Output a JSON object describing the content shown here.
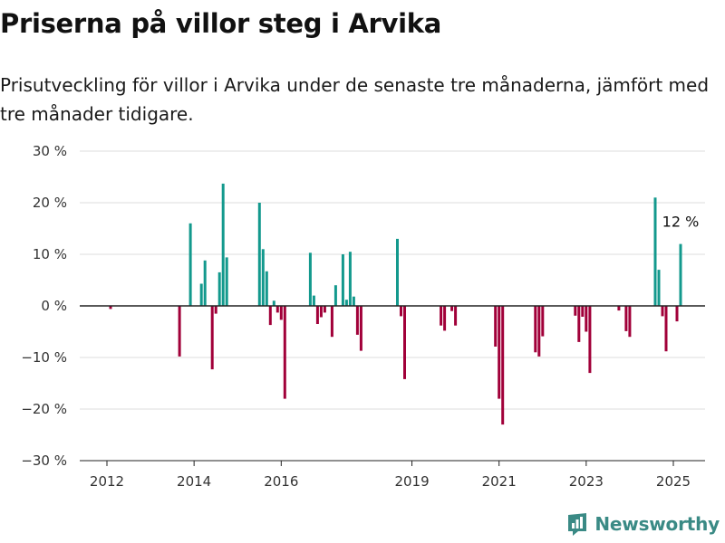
{
  "title": "Priserna på villor steg i Arvika",
  "subtitle": "Prisutveckling för villor i Arvika under de senaste tre månaderna, jämfört med tre månader tidigare.",
  "brand": {
    "name": "Newsworthy",
    "icon": "newsworthy-logo-icon"
  },
  "colors": {
    "positive": "#13998d",
    "negative": "#a10039",
    "grid": "#dddddd",
    "zero_line": "#222222",
    "brand": "#3a8a85"
  },
  "chart_data": {
    "type": "bar",
    "ylim": [
      -30,
      30
    ],
    "grid": true,
    "y_ticks": [
      30,
      20,
      10,
      0,
      -10,
      -20,
      -30
    ],
    "y_tick_labels": [
      "30 %",
      "20 %",
      "10 %",
      "0 %",
      "−10 %",
      "−20 %",
      "−30 %"
    ],
    "x_ticks": [
      "2012",
      "2014",
      "2016",
      "2019",
      "2021",
      "2023",
      "2025"
    ],
    "annotation": {
      "text": "12 %",
      "x": "2025-03",
      "value": 12
    },
    "bars": [
      {
        "x": "2012-02",
        "value": -0.6
      },
      {
        "x": "2013-09",
        "value": -9.8
      },
      {
        "x": "2013-12",
        "value": 16
      },
      {
        "x": "2014-03",
        "value": 4.3
      },
      {
        "x": "2014-04",
        "value": 8.8
      },
      {
        "x": "2014-06",
        "value": -12.3
      },
      {
        "x": "2014-07",
        "value": -1.5
      },
      {
        "x": "2014-08",
        "value": 6.5
      },
      {
        "x": "2014-09",
        "value": 23.7
      },
      {
        "x": "2014-10",
        "value": 9.4
      },
      {
        "x": "2015-07",
        "value": 20
      },
      {
        "x": "2015-08",
        "value": 11
      },
      {
        "x": "2015-09",
        "value": 6.7
      },
      {
        "x": "2015-10",
        "value": -3.7
      },
      {
        "x": "2015-11",
        "value": 1
      },
      {
        "x": "2015-12",
        "value": -1.3
      },
      {
        "x": "2016-01",
        "value": -2.7
      },
      {
        "x": "2016-02",
        "value": -18
      },
      {
        "x": "2016-09",
        "value": 10.3
      },
      {
        "x": "2016-10",
        "value": 2
      },
      {
        "x": "2016-11",
        "value": -3.5
      },
      {
        "x": "2016-12",
        "value": -2.2
      },
      {
        "x": "2017-01",
        "value": -1.3
      },
      {
        "x": "2017-03",
        "value": -6
      },
      {
        "x": "2017-04",
        "value": 4
      },
      {
        "x": "2017-06",
        "value": 10
      },
      {
        "x": "2017-07",
        "value": 1.2
      },
      {
        "x": "2017-08",
        "value": 10.5
      },
      {
        "x": "2017-09",
        "value": 1.8
      },
      {
        "x": "2017-10",
        "value": -5.6
      },
      {
        "x": "2017-11",
        "value": -8.7
      },
      {
        "x": "2018-09",
        "value": 13
      },
      {
        "x": "2018-10",
        "value": -2
      },
      {
        "x": "2018-11",
        "value": -14.2
      },
      {
        "x": "2019-09",
        "value": -3.8
      },
      {
        "x": "2019-10",
        "value": -4.8
      },
      {
        "x": "2019-12",
        "value": -1
      },
      {
        "x": "2020-01",
        "value": -3.8
      },
      {
        "x": "2020-12",
        "value": -7.9
      },
      {
        "x": "2021-01",
        "value": -18
      },
      {
        "x": "2021-02",
        "value": -23
      },
      {
        "x": "2021-11",
        "value": -9
      },
      {
        "x": "2021-12",
        "value": -9.8
      },
      {
        "x": "2022-01",
        "value": -5.9
      },
      {
        "x": "2022-10",
        "value": -1.9
      },
      {
        "x": "2022-11",
        "value": -7
      },
      {
        "x": "2022-12",
        "value": -2.1
      },
      {
        "x": "2023-01",
        "value": -5
      },
      {
        "x": "2023-02",
        "value": -13
      },
      {
        "x": "2023-10",
        "value": -0.9
      },
      {
        "x": "2023-12",
        "value": -4.9
      },
      {
        "x": "2024-01",
        "value": -6
      },
      {
        "x": "2024-08",
        "value": 21
      },
      {
        "x": "2024-09",
        "value": 7
      },
      {
        "x": "2024-10",
        "value": -2
      },
      {
        "x": "2024-11",
        "value": -8.8
      },
      {
        "x": "2025-02",
        "value": -3
      },
      {
        "x": "2025-03",
        "value": 12
      }
    ]
  }
}
